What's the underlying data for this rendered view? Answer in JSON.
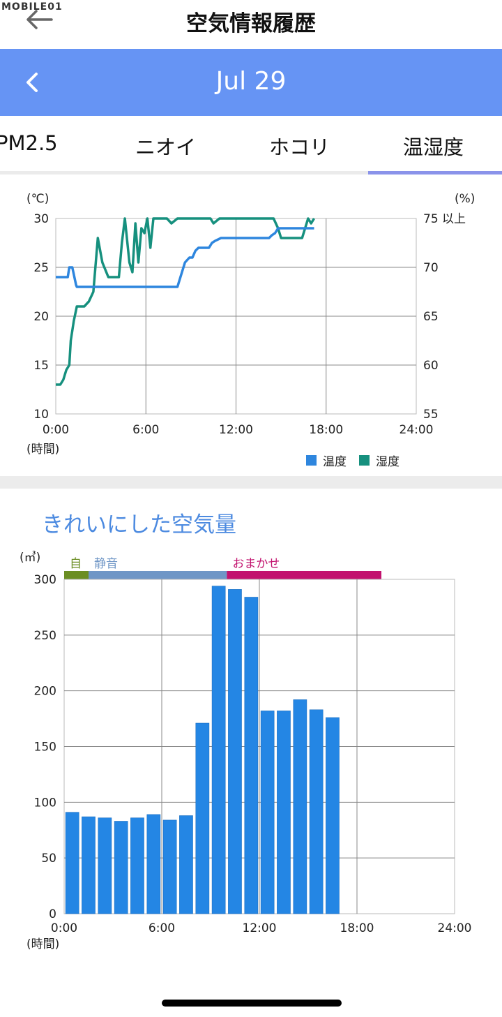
{
  "header": {
    "title": "空気情報履歴",
    "watermark": "MOBILE01",
    "back_icon": "arrow-left-icon"
  },
  "date_bar": {
    "date": "Jul 29",
    "prev_icon": "chevron-left-icon",
    "background": "#6694f4"
  },
  "tabs": [
    {
      "label": "PM2.5",
      "active": false
    },
    {
      "label": "ニオイ",
      "active": false
    },
    {
      "label": "ホコリ",
      "active": false
    },
    {
      "label": "温湿度",
      "active": true
    }
  ],
  "colors": {
    "temperature": "#2e86de",
    "humidity": "#16907e",
    "bar": "#2486e4",
    "mode_auto": "#6b8e23",
    "mode_quiet": "#6f96c6",
    "mode_omakase": "#c2126e",
    "section_title": "#4c8ae0"
  },
  "temp_humidity_chart": {
    "left_unit": "(℃)",
    "right_unit": "(%)",
    "x_unit": "(時間)",
    "y_left_ticks": [
      "30",
      "25",
      "20",
      "15",
      "10"
    ],
    "y_right_ticks": [
      "75 以上",
      "70",
      "65",
      "60",
      "55"
    ],
    "x_ticks": [
      "0:00",
      "6:00",
      "12:00",
      "18:00",
      "24:00"
    ],
    "legend": [
      {
        "name": "温度",
        "color": "#2e86de"
      },
      {
        "name": "湿度",
        "color": "#16907e"
      }
    ]
  },
  "air_section": {
    "title": "きれいにした空気量"
  },
  "air_chart": {
    "y_unit": "(㎥)",
    "y_ticks": [
      "300",
      "250",
      "200",
      "150",
      "100",
      "50",
      "0"
    ],
    "x_ticks": [
      "0:00",
      "6:00",
      "12:00",
      "18:00",
      "24:00"
    ],
    "x_unit": "(時間)",
    "modes": [
      {
        "label": "自",
        "start_hour": 0,
        "end_hour": 1.5,
        "color": "#6b8e23"
      },
      {
        "label": "静音",
        "start_hour": 1.5,
        "end_hour": 10,
        "color": "#6f96c6"
      },
      {
        "label": "おまかせ",
        "start_hour": 10,
        "end_hour": 19.5,
        "color": "#c2126e"
      }
    ]
  },
  "chart_data": [
    {
      "type": "line",
      "xlabel": "(時間)",
      "ylabel": "(℃)",
      "ylabel_right": "(%)",
      "xlim": [
        0,
        24
      ],
      "ylim": [
        10,
        30
      ],
      "ylim_right": [
        55,
        75
      ],
      "grid": true,
      "legend_position": "bottom-right",
      "series": [
        {
          "name": "温度",
          "axis": "left",
          "x": [
            0,
            0.8,
            0.9,
            1.1,
            1.35,
            1.4,
            1.9,
            2.2,
            3.6,
            3.8,
            4.2,
            5.0,
            8.1,
            8.3,
            8.6,
            8.9,
            9.1,
            9.3,
            9.5,
            9.7,
            10.2,
            10.4,
            10.6,
            11.0,
            11.2,
            13.8,
            14.2,
            14.4,
            14.6,
            14.8,
            15.0,
            17.2
          ],
          "y": [
            24,
            24,
            25,
            25,
            23.2,
            23,
            23,
            23,
            23,
            23,
            23,
            23,
            23,
            24,
            25.5,
            26,
            26,
            26.7,
            27,
            27,
            27,
            27.5,
            27.7,
            28,
            28,
            28,
            28,
            28.3,
            28.5,
            29,
            29,
            29
          ]
        },
        {
          "name": "湿度",
          "axis": "right",
          "x": [
            0,
            0.3,
            0.5,
            0.7,
            0.9,
            1.0,
            1.2,
            1.4,
            1.9,
            2.2,
            2.5,
            2.8,
            3.1,
            3.5,
            3.7,
            3.9,
            4.2,
            4.4,
            4.6,
            4.9,
            5.1,
            5.3,
            5.5,
            5.7,
            5.9,
            6.1,
            6.3,
            6.5,
            6.9,
            7.1,
            7.4,
            7.7,
            8.1,
            10.3,
            10.5,
            10.9,
            11.2,
            14.5,
            14.8,
            15.0,
            16.4,
            16.6,
            16.8,
            17.0,
            17.2
          ],
          "y": [
            58,
            58,
            58.5,
            59.5,
            60,
            62.5,
            64.5,
            66,
            66,
            66.5,
            67.5,
            73,
            70.5,
            69,
            69,
            69,
            69,
            72.5,
            75,
            70.5,
            69.5,
            74.5,
            70.5,
            74,
            73.5,
            75,
            72,
            75,
            75,
            75,
            75,
            74.5,
            75,
            75,
            74.5,
            75,
            75,
            75,
            74,
            73,
            73,
            74,
            75,
            74.5,
            75
          ]
        }
      ]
    },
    {
      "type": "bar",
      "xlabel": "(時間)",
      "ylabel": "(㎥)",
      "xlim": [
        0,
        24
      ],
      "ylim": [
        0,
        300
      ],
      "grid": true,
      "x": [
        0.5,
        1.5,
        2.5,
        3.5,
        4.5,
        5.5,
        6.5,
        7.5,
        8.5,
        9.5,
        10.5,
        11.5,
        12.5,
        13.5,
        14.5,
        15.5,
        16.5
      ],
      "values": [
        91,
        87,
        86,
        83,
        86,
        89,
        84,
        88,
        171,
        294,
        291,
        284,
        182,
        182,
        192,
        183,
        176
      ]
    }
  ]
}
